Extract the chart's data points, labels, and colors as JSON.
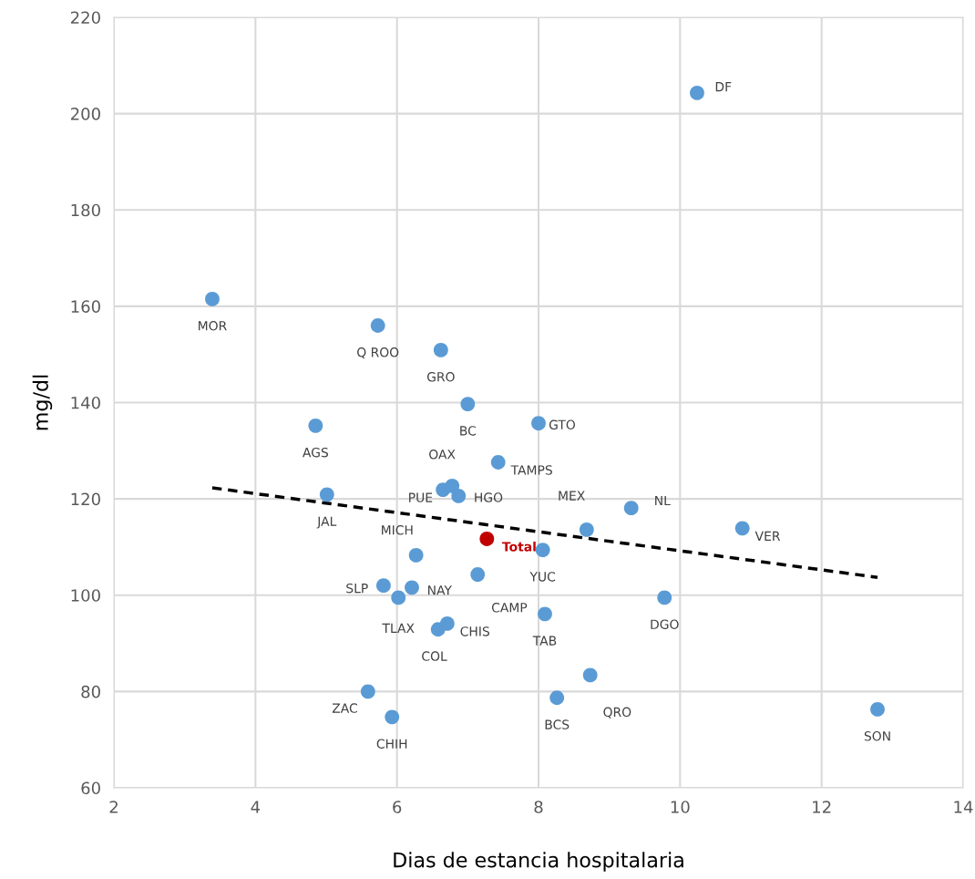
{
  "chart_data": {
    "type": "scatter",
    "xlabel": "Dias de estancia hospitalaria",
    "ylabel": "mg/dl",
    "xlim": [
      2,
      14
    ],
    "xticks": [
      2,
      4,
      6,
      8,
      10,
      12,
      14
    ],
    "ylim": [
      60,
      220
    ],
    "yticks": [
      60,
      80,
      100,
      120,
      140,
      160,
      180,
      200,
      220
    ],
    "grid": true,
    "marker": "circle",
    "series": [
      {
        "color": "#5b9bd5",
        "x": [
          10.24,
          3.39,
          5.73,
          6.62,
          7.0,
          8.0,
          4.85,
          7.43,
          6.78,
          6.65,
          6.87,
          5.01,
          9.31,
          10.88,
          8.68,
          8.06,
          6.27,
          7.14,
          5.81,
          6.21,
          6.02,
          9.78,
          8.09,
          6.71,
          6.58,
          8.73,
          5.59,
          8.26,
          5.93,
          12.79
        ],
        "values": [
          204.3,
          161.5,
          156.0,
          150.9,
          139.7,
          135.7,
          135.2,
          127.6,
          122.7,
          121.9,
          120.6,
          120.9,
          118.1,
          113.9,
          113.6,
          109.4,
          108.3,
          104.3,
          102.0,
          101.6,
          99.5,
          99.5,
          96.1,
          94.1,
          92.9,
          83.4,
          80.0,
          78.7,
          74.7,
          76.3
        ],
        "value_labels": [
          "DF",
          "MOR",
          "Q ROO",
          "GRO",
          "BC",
          "GTO",
          "AGS",
          "TAMPS",
          "OAX",
          "PUE",
          "HGO",
          "JAL",
          "NL",
          "VER",
          "MEX",
          "YUC",
          "MICH",
          "CAMP",
          "SLP",
          "NAY",
          "TLAX",
          "DGO",
          "TAB",
          "CHIS",
          "COL",
          "QRO",
          "ZAC",
          "BCS",
          "CHIH",
          "SON"
        ]
      },
      {
        "color": "#c00000",
        "x": [
          7.27
        ],
        "values": [
          111.7
        ],
        "value_labels": [
          "Total"
        ]
      },
      {
        "type": "line",
        "color": "#000000",
        "line_style": "dashed",
        "marker": "none",
        "x": [
          3.39,
          12.79
        ],
        "values": [
          122.3,
          103.7
        ]
      }
    ]
  }
}
